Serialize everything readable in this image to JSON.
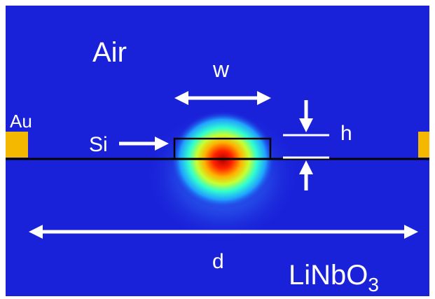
{
  "labels": {
    "air": "Air",
    "width": "w",
    "gold": "Au",
    "silicon": "Si",
    "height": "h",
    "distance": "d",
    "substrate": {
      "text": "LiNbO",
      "subscript": "3"
    }
  }
}
